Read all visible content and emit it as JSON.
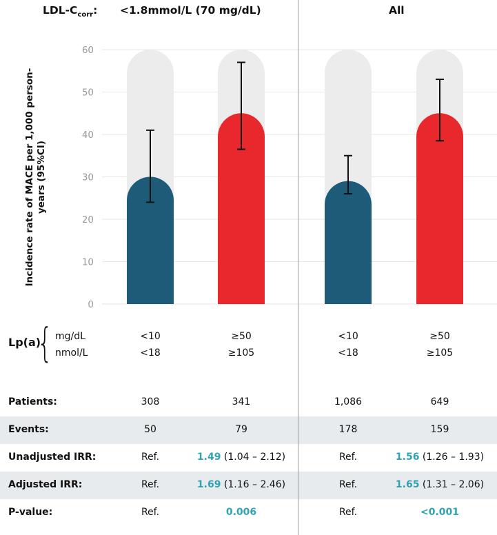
{
  "header": {
    "ldl_label_main": "LDL-C",
    "ldl_label_sub": "corr",
    "ldl_label_colon": ":",
    "group_left": "<1.8mmol/L (70 mg/dL)",
    "group_right": "All"
  },
  "chart_data": {
    "type": "bar",
    "ylabel": "Incidence rate of MACE per 1,000 person-years (95%CI)",
    "ylim": [
      0,
      60
    ],
    "yticks": [
      0,
      10,
      20,
      30,
      40,
      50,
      60
    ],
    "groups": [
      "<1.8mmol/L (70 mg/dL)",
      "All"
    ],
    "bars": [
      {
        "group": "<1.8mmol/L (70 mg/dL)",
        "lpa": "<10 mg/dL",
        "value": 30,
        "ci_low": 24,
        "ci_high": 41,
        "color": "#1e5b79"
      },
      {
        "group": "<1.8mmol/L (70 mg/dL)",
        "lpa": "≥50 mg/dL",
        "value": 45,
        "ci_low": 36.5,
        "ci_high": 57,
        "color": "#e8282c"
      },
      {
        "group": "All",
        "lpa": "<10 mg/dL",
        "value": 29,
        "ci_low": 26,
        "ci_high": 35,
        "color": "#1e5b79"
      },
      {
        "group": "All",
        "lpa": "≥50 mg/dL",
        "value": 45,
        "ci_low": 38.5,
        "ci_high": 53,
        "color": "#e8282c"
      }
    ],
    "background_capsule_color": "#ececec"
  },
  "lpa": {
    "label": "Lp(a)",
    "unit_mg": "mg/dL",
    "unit_nmol": "nmol/L",
    "columns": [
      {
        "mg": "<10",
        "nmol": "<18"
      },
      {
        "mg": "≥50",
        "nmol": "≥105"
      },
      {
        "mg": "<10",
        "nmol": "<18"
      },
      {
        "mg": "≥50",
        "nmol": "≥105"
      }
    ]
  },
  "table": {
    "rows": [
      {
        "label": "Patients:",
        "cells": [
          {
            "main": "308"
          },
          {
            "main": "341"
          },
          {
            "main": "1,086"
          },
          {
            "main": "649"
          }
        ]
      },
      {
        "label": "Events:",
        "cells": [
          {
            "main": "50"
          },
          {
            "main": "79"
          },
          {
            "main": "178"
          },
          {
            "main": "159"
          }
        ]
      },
      {
        "label": "Unadjusted IRR:",
        "cells": [
          {
            "main": "Ref."
          },
          {
            "hl": "1.49",
            "rest": " (1.04 – 2.12)"
          },
          {
            "main": "Ref."
          },
          {
            "hl": "1.56",
            "rest": " (1.26 – 1.93)"
          }
        ]
      },
      {
        "label": "Adjusted IRR:",
        "cells": [
          {
            "main": "Ref."
          },
          {
            "hl": "1.69",
            "rest": " (1.16 – 2.46)"
          },
          {
            "main": "Ref."
          },
          {
            "hl": "1.65",
            "rest": " (1.31 – 2.06)"
          }
        ]
      },
      {
        "label": "P-value:",
        "cells": [
          {
            "main": "Ref."
          },
          {
            "hl": "0.006",
            "rest": ""
          },
          {
            "main": "Ref."
          },
          {
            "hl": "<0.001",
            "rest": ""
          }
        ]
      }
    ]
  }
}
